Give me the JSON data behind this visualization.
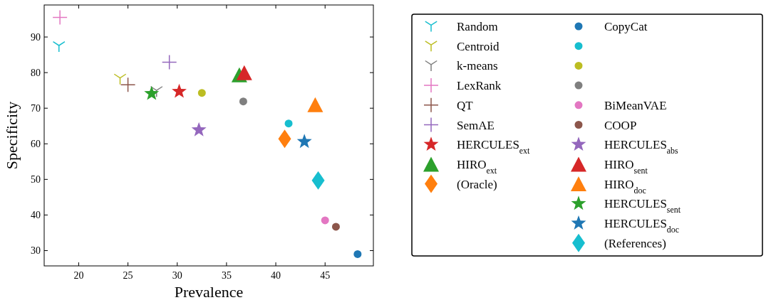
{
  "chart_data": {
    "type": "scatter",
    "xlabel": "Prevalence",
    "ylabel": "Specificity",
    "xlim": [
      16.5,
      49.9
    ],
    "ylim": [
      25.7,
      99
    ],
    "xticks": [
      20,
      25,
      30,
      35,
      40,
      45
    ],
    "yticks": [
      30,
      40,
      50,
      60,
      70,
      80,
      90
    ],
    "grid": false,
    "legend": "right",
    "series": [
      {
        "name": "Random",
        "color": "#17becf",
        "x": [
          18.0
        ],
        "values": [
          87.3
        ]
      },
      {
        "name": "Centroid",
        "color": "#bcbd22",
        "x": [
          24.2
        ],
        "values": [
          78.2
        ]
      },
      {
        "name": "k-means",
        "color": "#7f7f7f",
        "x": [
          27.9
        ],
        "values": [
          74.7
        ]
      },
      {
        "name": "LexRank",
        "color": "#e377c2",
        "marker": "cross",
        "x": [
          18.1
        ],
        "values": [
          95.5
        ]
      },
      {
        "name": "QT",
        "color": "#8c564b",
        "marker": "cross",
        "x": [
          25.0
        ],
        "values": [
          76.6
        ]
      },
      {
        "name": "SemAE",
        "color": "#9467bd",
        "marker": "cross",
        "x": [
          29.2
        ],
        "values": [
          82.9
        ]
      },
      {
        "name": "HERCULES$_{ext}$",
        "color": "#d62728",
        "marker": "star",
        "x": [
          30.2
        ],
        "values": [
          74.7
        ]
      },
      {
        "name": "HIRO$_{ext}$",
        "color": "#2ca02c",
        "marker": "triangle",
        "x": [
          36.3
        ],
        "values": [
          79.4
        ]
      },
      {
        "name": "(Oracle)",
        "color": "#ff7f0e",
        "marker": "diamond",
        "x": [
          40.9
        ],
        "values": [
          61.4
        ]
      },
      {
        "name": "CopyCat",
        "color": "#1f77b4",
        "marker": "circle",
        "x": [
          48.3
        ],
        "values": [
          29.0
        ]
      },
      {
        "color": "#17becf",
        "marker": "circle",
        "x": [
          41.3
        ],
        "values": [
          65.7
        ]
      },
      {
        "color": "#bcbd22",
        "marker": "circle",
        "x": [
          32.5
        ],
        "values": [
          74.3
        ]
      },
      {
        "color": "#7f7f7f",
        "marker": "circle",
        "x": [
          36.7
        ],
        "values": [
          71.9
        ]
      },
      {
        "name": "BiMeanVAE",
        "color": "#e377c2",
        "marker": "circle",
        "x": [
          45.0
        ],
        "values": [
          38.5
        ]
      },
      {
        "name": "COOP",
        "color": "#8c564b",
        "marker": "circle",
        "x": [
          46.1
        ],
        "values": [
          36.7
        ]
      },
      {
        "name": "HERCULES$_{abs}$",
        "color": "#9467bd",
        "marker": "star",
        "x": [
          32.2
        ],
        "values": [
          63.9
        ]
      },
      {
        "name": "HIRO$_{sent}$",
        "color": "#d62728",
        "marker": "triangle",
        "x": [
          36.8
        ],
        "values": [
          80.0
        ]
      },
      {
        "name": "HIRO$_{doc}$",
        "color": "#ff7f0e",
        "marker": "triangle",
        "x": [
          44.0
        ],
        "values": [
          71.0
        ]
      },
      {
        "name": "HERCULES$_{sent}$",
        "color": "#2ca02c",
        "marker": "star",
        "x": [
          27.4
        ],
        "values": [
          74.1
        ]
      },
      {
        "name": "HERCULES$_{doc}$",
        "color": "#1f77b4",
        "marker": "star",
        "x": [
          42.9
        ],
        "values": [
          60.6
        ]
      },
      {
        "name": "(References)",
        "color": "#17becf",
        "marker": "diamond",
        "x": [
          44.3
        ],
        "values": [
          49.7
        ]
      }
    ]
  }
}
